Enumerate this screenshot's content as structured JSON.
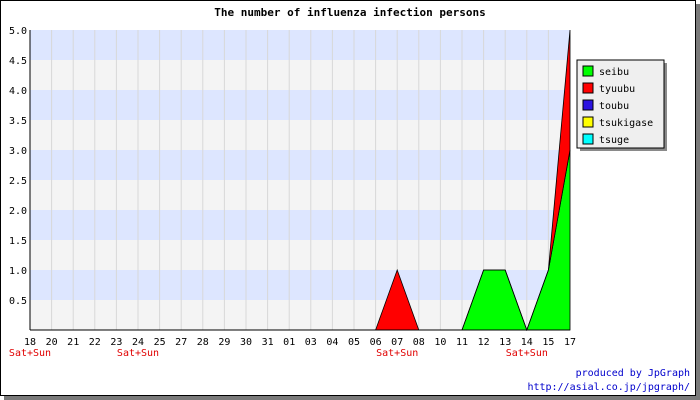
{
  "chart_data": {
    "type": "area",
    "title": "The number of influenza infection persons",
    "xlabel": "",
    "ylabel": "",
    "categories": [
      "18",
      "20",
      "21",
      "22",
      "23",
      "24",
      "25",
      "27",
      "28",
      "29",
      "30",
      "31",
      "01",
      "03",
      "04",
      "05",
      "06",
      "07",
      "08",
      "10",
      "11",
      "12",
      "13",
      "14",
      "15",
      "17"
    ],
    "weekend_markers": [
      {
        "category": "18",
        "label": "Sat+Sun"
      },
      {
        "category": "24",
        "label": "Sat+Sun"
      },
      {
        "category": "07",
        "label": "Sat+Sun"
      },
      {
        "category": "14",
        "label": "Sat+Sun"
      }
    ],
    "ylim": [
      0,
      5
    ],
    "yticks": [
      "0.5",
      "1.0",
      "1.5",
      "2.0",
      "2.5",
      "3.0",
      "3.5",
      "4.0",
      "4.5",
      "5.0"
    ],
    "series": [
      {
        "name": "seibu",
        "color": "#00ff00",
        "values": [
          0,
          0,
          0,
          0,
          0,
          0,
          0,
          0,
          0,
          0,
          0,
          0,
          0,
          0,
          0,
          0,
          0,
          0,
          0,
          0,
          0,
          1,
          1,
          0,
          1,
          3
        ]
      },
      {
        "name": "tyuubu",
        "color": "#ff0000",
        "values": [
          0,
          0,
          0,
          0,
          0,
          0,
          0,
          0,
          0,
          0,
          0,
          0,
          0,
          0,
          0,
          0,
          0,
          1,
          0,
          0,
          0,
          0,
          0,
          0,
          0,
          2
        ]
      },
      {
        "name": "toubu",
        "color": "#2b12e0",
        "values": [
          0,
          0,
          0,
          0,
          0,
          0,
          0,
          0,
          0,
          0,
          0,
          0,
          0,
          0,
          0,
          0,
          0,
          0,
          0,
          0,
          0,
          0,
          0,
          0,
          0,
          0
        ]
      },
      {
        "name": "tsukigase",
        "color": "#ffff00",
        "values": [
          0,
          0,
          0,
          0,
          0,
          0,
          0,
          0,
          0,
          0,
          0,
          0,
          0,
          0,
          0,
          0,
          0,
          0,
          0,
          0,
          0,
          0,
          0,
          0,
          0,
          0
        ]
      },
      {
        "name": "tsuge",
        "color": "#00ffff",
        "values": [
          0,
          0,
          0,
          0,
          0,
          0,
          0,
          0,
          0,
          0,
          0,
          0,
          0,
          0,
          0,
          0,
          0,
          0,
          0,
          0,
          0,
          0,
          0,
          0,
          0,
          0
        ]
      }
    ],
    "stacked": true,
    "grid": true,
    "legend_position": "top-right",
    "band_colors": [
      "#dde6ff",
      "#f4f4f4"
    ]
  },
  "credit": {
    "line1": "produced by JpGraph",
    "line2": "http://asial.co.jp/jpgraph/"
  }
}
